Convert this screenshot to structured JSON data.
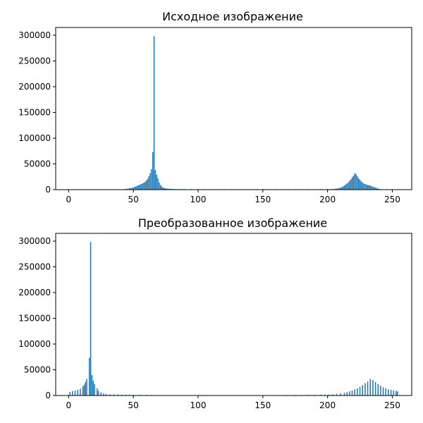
{
  "chart_data": [
    {
      "type": "bar",
      "title": "Исходное изображение",
      "xlabel": "",
      "ylabel": "",
      "xlim": [
        -10,
        265
      ],
      "ylim": [
        0,
        315000
      ],
      "x_ticks": [
        "0",
        "50",
        "100",
        "150",
        "200",
        "250"
      ],
      "y_ticks": [
        "0",
        "50000",
        "100000",
        "150000",
        "200000",
        "250000",
        "300000"
      ],
      "bar_color": "#1f77b4",
      "grid": false,
      "bars": [
        [
          40,
          400
        ],
        [
          41,
          600
        ],
        [
          42,
          800
        ],
        [
          43,
          1000
        ],
        [
          44,
          1300
        ],
        [
          45,
          1700
        ],
        [
          46,
          2000
        ],
        [
          47,
          2500
        ],
        [
          48,
          3000
        ],
        [
          49,
          3500
        ],
        [
          50,
          4500
        ],
        [
          51,
          5500
        ],
        [
          52,
          6500
        ],
        [
          53,
          7500
        ],
        [
          54,
          8500
        ],
        [
          55,
          9500
        ],
        [
          56,
          11000
        ],
        [
          57,
          12000
        ],
        [
          58,
          13500
        ],
        [
          59,
          15000
        ],
        [
          60,
          18000
        ],
        [
          61,
          21000
        ],
        [
          62,
          26000
        ],
        [
          63,
          32000
        ],
        [
          64,
          40000
        ],
        [
          65,
          73000
        ],
        [
          66,
          298000
        ],
        [
          67,
          38000
        ],
        [
          68,
          29000
        ],
        [
          69,
          22000
        ],
        [
          70,
          14000
        ],
        [
          71,
          9000
        ],
        [
          72,
          6000
        ],
        [
          73,
          4000
        ],
        [
          74,
          3000
        ],
        [
          75,
          2500
        ],
        [
          76,
          2100
        ],
        [
          77,
          1900
        ],
        [
          78,
          1700
        ],
        [
          79,
          1600
        ],
        [
          80,
          1500
        ],
        [
          82,
          1400
        ],
        [
          84,
          1300
        ],
        [
          86,
          1300
        ],
        [
          88,
          1200
        ],
        [
          90,
          1200
        ],
        [
          95,
          1100
        ],
        [
          100,
          1100
        ],
        [
          105,
          1000
        ],
        [
          110,
          1000
        ],
        [
          115,
          1000
        ],
        [
          120,
          1000
        ],
        [
          125,
          1000
        ],
        [
          130,
          1000
        ],
        [
          135,
          1000
        ],
        [
          140,
          1000
        ],
        [
          145,
          1000
        ],
        [
          150,
          1000
        ],
        [
          155,
          1000
        ],
        [
          160,
          1000
        ],
        [
          165,
          1000
        ],
        [
          170,
          1000
        ],
        [
          175,
          1000
        ],
        [
          180,
          1000
        ],
        [
          185,
          1000
        ],
        [
          190,
          1100
        ],
        [
          195,
          1200
        ],
        [
          200,
          1300
        ],
        [
          203,
          1400
        ],
        [
          205,
          1600
        ],
        [
          206,
          1800
        ],
        [
          207,
          2000
        ],
        [
          208,
          2500
        ],
        [
          209,
          3000
        ],
        [
          210,
          4000
        ],
        [
          211,
          5000
        ],
        [
          212,
          6500
        ],
        [
          213,
          8000
        ],
        [
          214,
          10000
        ],
        [
          215,
          12000
        ],
        [
          216,
          14000
        ],
        [
          217,
          17000
        ],
        [
          218,
          20000
        ],
        [
          219,
          24000
        ],
        [
          220,
          27000
        ],
        [
          221,
          32000
        ],
        [
          222,
          30000
        ],
        [
          223,
          26000
        ],
        [
          224,
          22000
        ],
        [
          225,
          19000
        ],
        [
          226,
          16000
        ],
        [
          227,
          14000
        ],
        [
          228,
          12000
        ],
        [
          229,
          11000
        ],
        [
          230,
          10000
        ],
        [
          231,
          9000
        ],
        [
          232,
          8500
        ],
        [
          233,
          8000
        ],
        [
          234,
          7000
        ],
        [
          235,
          6000
        ],
        [
          236,
          5000
        ],
        [
          237,
          4000
        ],
        [
          238,
          3000
        ],
        [
          239,
          2000
        ],
        [
          240,
          1500
        ],
        [
          241,
          1000
        ],
        [
          242,
          700
        ],
        [
          243,
          500
        ],
        [
          244,
          300
        ]
      ]
    },
    {
      "type": "bar",
      "title": "Преобразованное изображение",
      "xlabel": "",
      "ylabel": "",
      "xlim": [
        -10,
        265
      ],
      "ylim": [
        0,
        315000
      ],
      "x_ticks": [
        "0",
        "50",
        "100",
        "150",
        "200",
        "250"
      ],
      "y_ticks": [
        "0",
        "50000",
        "100000",
        "150000",
        "200000",
        "250000",
        "300000"
      ],
      "bar_color": "#1f77b4",
      "grid": false,
      "bars": [
        [
          1,
          7000
        ],
        [
          3,
          8500
        ],
        [
          5,
          9500
        ],
        [
          7,
          11000
        ],
        [
          9,
          13500
        ],
        [
          11,
          18000
        ],
        [
          12,
          21000
        ],
        [
          13,
          26000
        ],
        [
          14,
          32000
        ],
        [
          16,
          73000
        ],
        [
          17,
          298000
        ],
        [
          18,
          40000
        ],
        [
          19,
          29000
        ],
        [
          20,
          22000
        ],
        [
          22,
          14000
        ],
        [
          23,
          9000
        ],
        [
          25,
          6000
        ],
        [
          27,
          4000
        ],
        [
          29,
          3000
        ],
        [
          32,
          2500
        ],
        [
          35,
          2100
        ],
        [
          38,
          1900
        ],
        [
          41,
          1700
        ],
        [
          44,
          1600
        ],
        [
          47,
          1500
        ],
        [
          50,
          1400
        ],
        [
          55,
          1300
        ],
        [
          60,
          1200
        ],
        [
          64,
          1100
        ],
        [
          168,
          1100
        ],
        [
          175,
          1000
        ],
        [
          180,
          1100
        ],
        [
          185,
          1200
        ],
        [
          190,
          1400
        ],
        [
          195,
          1600
        ],
        [
          198,
          1800
        ],
        [
          201,
          2000
        ],
        [
          204,
          2500
        ],
        [
          207,
          3000
        ],
        [
          210,
          4000
        ],
        [
          213,
          5000
        ],
        [
          215,
          6500
        ],
        [
          217,
          8000
        ],
        [
          219,
          10000
        ],
        [
          221,
          12000
        ],
        [
          223,
          14000
        ],
        [
          225,
          17000
        ],
        [
          227,
          20000
        ],
        [
          229,
          24000
        ],
        [
          231,
          27000
        ],
        [
          233,
          32000
        ],
        [
          235,
          30000
        ],
        [
          237,
          26000
        ],
        [
          239,
          22000
        ],
        [
          241,
          19000
        ],
        [
          243,
          16000
        ],
        [
          245,
          14000
        ],
        [
          247,
          12000
        ],
        [
          249,
          11000
        ],
        [
          251,
          10000
        ],
        [
          253,
          9000
        ],
        [
          254,
          8000
        ]
      ]
    }
  ]
}
